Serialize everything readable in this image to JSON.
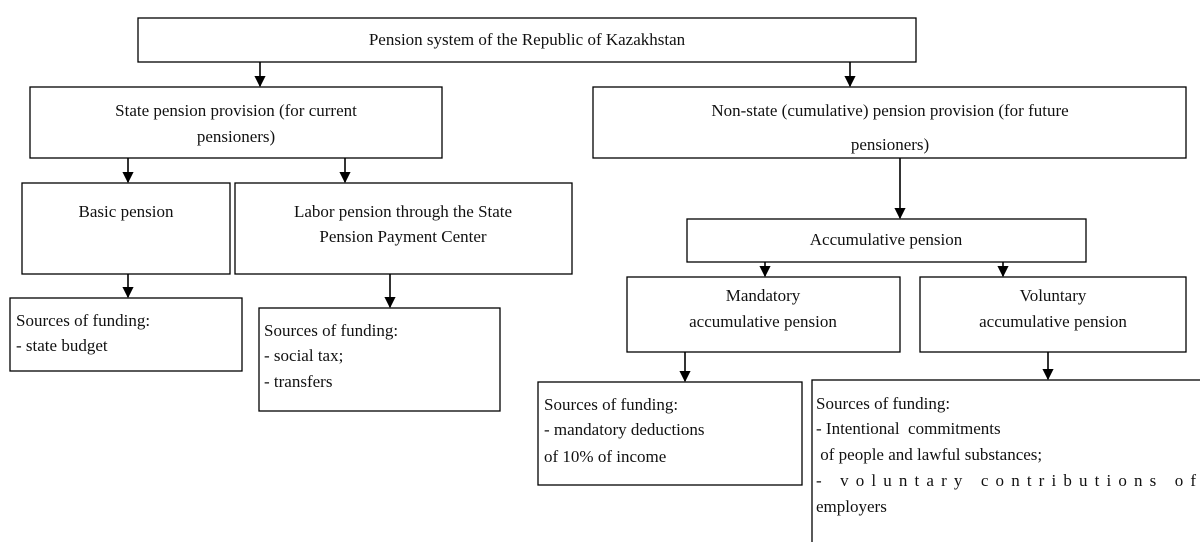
{
  "nodes": [
    {
      "lines": [
        "Pension system of the Republic of Kazakhstan"
      ]
    },
    {
      "lines": [
        "State pension provision (for current",
        "pensioners)"
      ]
    },
    {
      "lines": [
        "Non-state (cumulative) pension provision (for future",
        "pensioners)"
      ]
    },
    {
      "lines": [
        "Basic pension"
      ]
    },
    {
      "lines": [
        "Labor pension through the State",
        "Pension Payment Center"
      ]
    },
    {
      "lines": [
        "Accumulative pension"
      ]
    },
    {
      "lines": [
        "Mandatory",
        "accumulative pension"
      ]
    },
    {
      "lines": [
        "Voluntary",
        "accumulative pension"
      ]
    },
    {
      "lines": [
        "Sources of funding:",
        "- state budget"
      ]
    },
    {
      "lines": [
        "Sources of funding:",
        "- social tax;",
        "- transfers"
      ]
    },
    {
      "lines": [
        "Sources of funding:",
        "- mandatory deductions",
        "of 10% of income"
      ]
    },
    {
      "lines": [
        "Sources of funding:",
        "- Intentional  commitments",
        " of people and lawful substances;",
        "- voluntary contributions of",
        "employers"
      ]
    }
  ]
}
